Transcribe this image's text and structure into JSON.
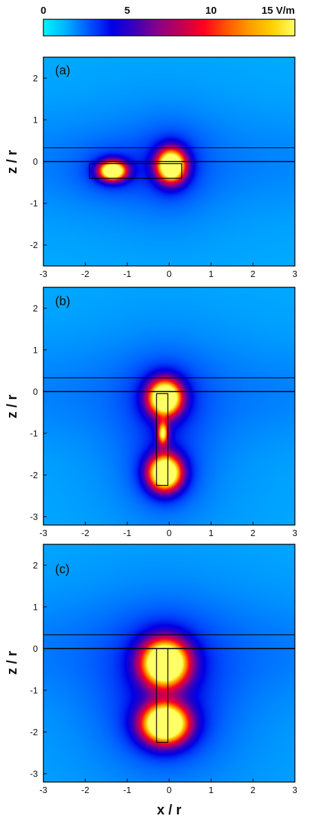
{
  "chart_data": {
    "type": "heatmap",
    "colorbar": {
      "ticks": [
        {
          "value": 0,
          "label": "0"
        },
        {
          "value": 5,
          "label": "5"
        },
        {
          "value": 10,
          "label": "10"
        },
        {
          "value": 15,
          "label": "15 V/m"
        }
      ],
      "range": [
        0,
        15
      ],
      "colors": [
        "#00f5ff",
        "#00b0ff",
        "#0055ff",
        "#0000e6",
        "#3a00b8",
        "#8a008a",
        "#c00055",
        "#ff0020",
        "#ff5500",
        "#ff9a00",
        "#ffd000",
        "#ffff66"
      ]
    },
    "xlabel": "x / r",
    "ylabel": "z / r",
    "x_ticks": [
      -3,
      -2,
      -1,
      0,
      1,
      2,
      3
    ],
    "xlim": [
      -3,
      3
    ],
    "panels": [
      {
        "label": "(a)",
        "ylim": [
          -2.5,
          2.5
        ],
        "y_ticks": [
          2,
          1,
          0,
          -1,
          -2
        ],
        "interface_lines_z": [
          0.33,
          0
        ],
        "rod": {
          "x0": -1.9,
          "x1": 0.3,
          "z0": -0.4,
          "z1": -0.05
        },
        "hotspots": [
          {
            "x": -1.35,
            "z": -0.22,
            "sx": 0.24,
            "sz": 0.17,
            "peak": 16
          },
          {
            "x": 0.05,
            "z": -0.1,
            "sx": 0.26,
            "sz": 0.3,
            "peak": 16
          }
        ]
      },
      {
        "label": "(b)",
        "ylim": [
          -3.2,
          2.5
        ],
        "y_ticks": [
          2,
          1,
          0,
          -1,
          -2,
          -3
        ],
        "interface_lines_z": [
          0.33,
          0
        ],
        "rod": {
          "x0": -0.3,
          "x1": -0.03,
          "z0": -2.25,
          "z1": -0.05
        },
        "hotspots": [
          {
            "x": -0.1,
            "z": -0.15,
            "sx": 0.3,
            "sz": 0.32,
            "peak": 16
          },
          {
            "x": -0.1,
            "z": -1.95,
            "sx": 0.3,
            "sz": 0.32,
            "peak": 16
          },
          {
            "x": -0.15,
            "z": -1.0,
            "sx": 0.1,
            "sz": 0.22,
            "peak": 9
          }
        ]
      },
      {
        "label": "(c)",
        "ylim": [
          -3.2,
          2.5
        ],
        "y_ticks": [
          2,
          1,
          0,
          -1,
          -2,
          -3
        ],
        "interface_lines_z": [
          0.33,
          0
        ],
        "rod": {
          "x0": -0.3,
          "x1": -0.03,
          "z0": -2.25,
          "z1": 0
        },
        "hotspots": [
          {
            "x": -0.1,
            "z": -0.35,
            "sx": 0.42,
            "sz": 0.42,
            "peak": 17
          },
          {
            "x": -0.1,
            "z": -1.8,
            "sx": 0.42,
            "sz": 0.36,
            "peak": 17
          }
        ]
      }
    ]
  }
}
